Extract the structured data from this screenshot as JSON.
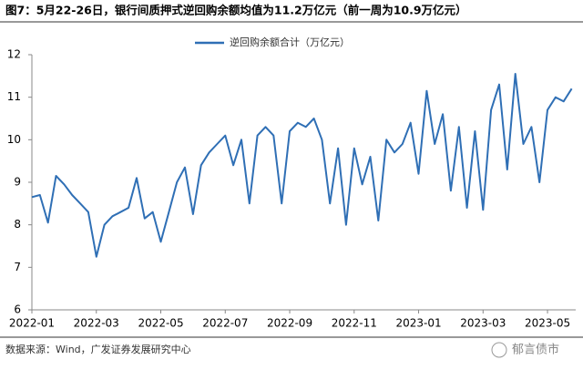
{
  "chart_data": {
    "type": "line",
    "title": "图7：5月22-26日，银行间质押式逆回购余额均值为11.2万亿元（前一周为10.9万亿元）",
    "source": "数据来源：Wind，广发证券发展研究中心",
    "watermark": "郁言债市",
    "categories": [
      "2022-01",
      null,
      null,
      null,
      null,
      null,
      null,
      null,
      "2022-03",
      null,
      null,
      null,
      null,
      null,
      null,
      null,
      "2022-05",
      null,
      null,
      null,
      null,
      null,
      null,
      null,
      "2022-07",
      null,
      null,
      null,
      null,
      null,
      null,
      null,
      "2022-09",
      null,
      null,
      null,
      null,
      null,
      null,
      null,
      "2022-11",
      null,
      null,
      null,
      null,
      null,
      null,
      null,
      "2023-01",
      null,
      null,
      null,
      null,
      null,
      null,
      null,
      "2023-03",
      null,
      null,
      null,
      null,
      null,
      null,
      null,
      "2023-05",
      null,
      null,
      null
    ],
    "series": [
      {
        "name": "逆回购余额合计（万亿元）",
        "color": "#2f6fb5",
        "values": [
          8.65,
          8.7,
          8.05,
          9.15,
          8.95,
          8.7,
          8.5,
          8.3,
          7.25,
          8.0,
          8.2,
          8.3,
          8.4,
          9.1,
          8.15,
          8.3,
          7.6,
          8.3,
          9.0,
          9.35,
          8.25,
          9.4,
          9.7,
          9.9,
          10.1,
          9.4,
          10.0,
          8.5,
          10.1,
          10.3,
          10.1,
          8.5,
          10.2,
          10.4,
          10.3,
          10.5,
          10.0,
          8.5,
          9.8,
          8.0,
          9.8,
          8.95,
          9.6,
          8.1,
          10.0,
          9.7,
          9.9,
          10.4,
          9.2,
          11.15,
          9.9,
          10.6,
          8.8,
          10.3,
          8.4,
          10.2,
          8.35,
          10.7,
          11.3,
          9.3,
          11.55,
          9.9,
          10.3,
          9.0,
          10.7,
          11.0,
          10.9,
          11.2
        ]
      }
    ],
    "ylim": [
      6,
      12
    ],
    "yticks": [
      6,
      7,
      8,
      9,
      10,
      11,
      12
    ],
    "grid": false
  }
}
